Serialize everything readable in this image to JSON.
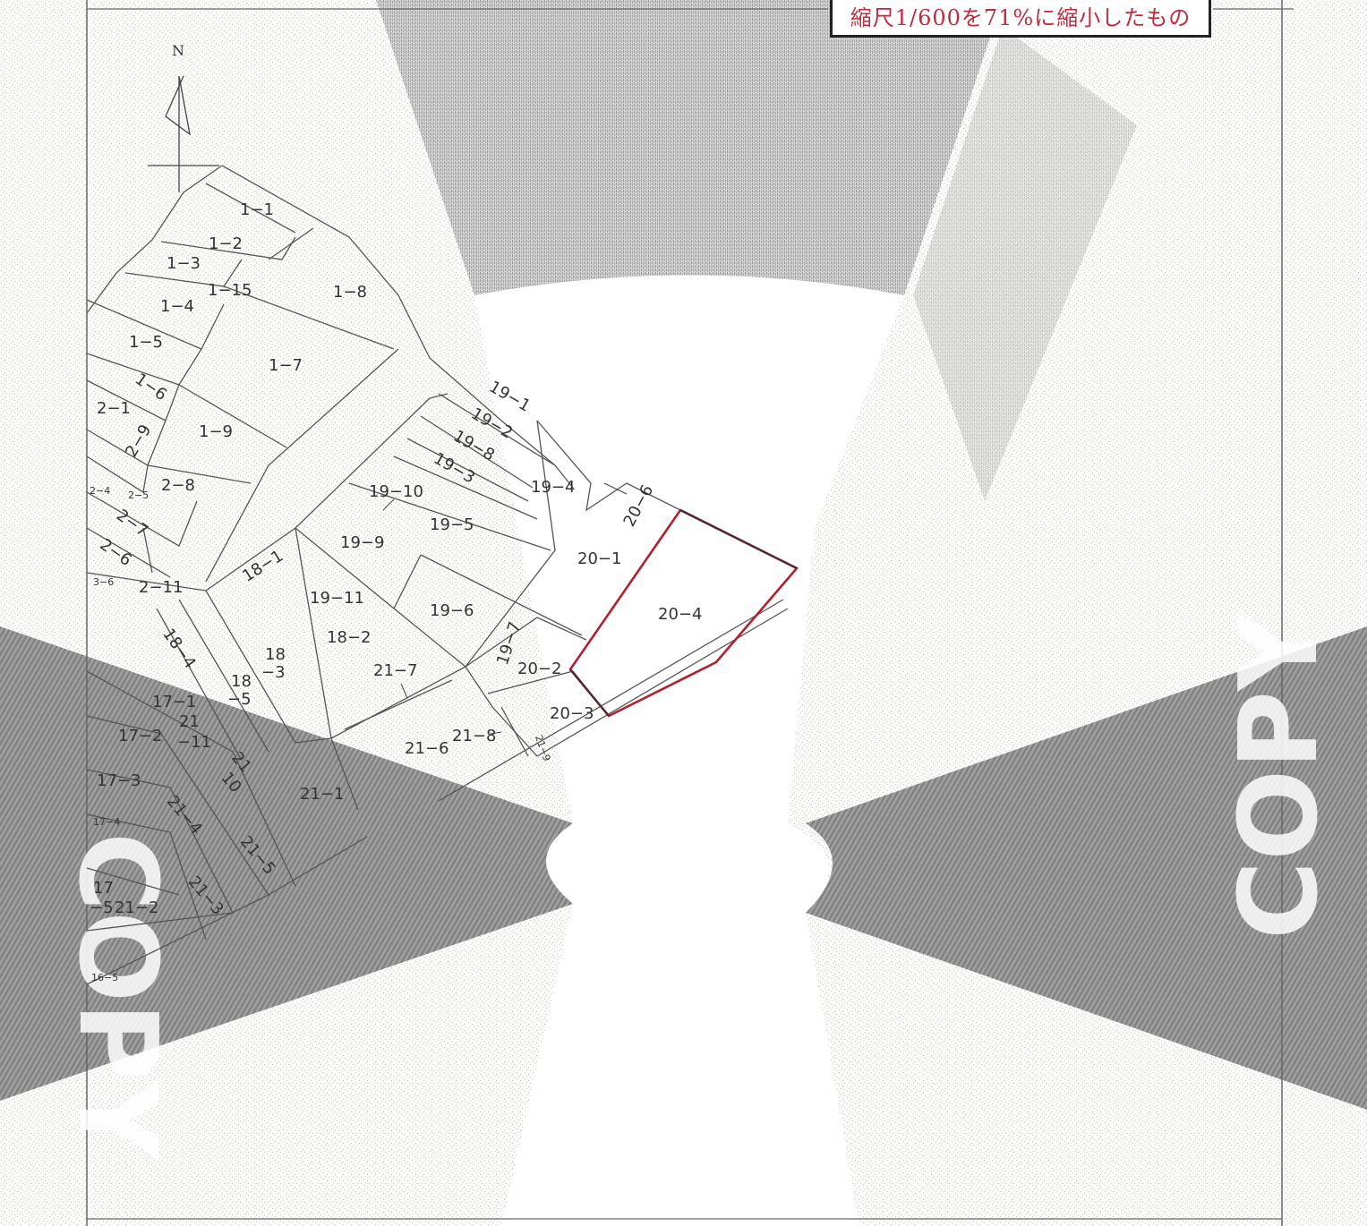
{
  "scale_note": "縮尺1/600を71%に縮小したもの",
  "north_label": "N",
  "watermark_text": "COPY",
  "colors": {
    "highlight": "#b3202c",
    "note_text": "#c8283c",
    "copy_band": "#8a8a8a",
    "noise": "#b5b5b5"
  },
  "lots": {
    "l1_1": "1−1",
    "l1_2": "1−2",
    "l1_3": "1−3",
    "l1_15": "1−15",
    "l1_4": "1−4",
    "l1_5": "1−5",
    "l1_6": "1−6",
    "l1_7": "1−7",
    "l1_8": "1−8",
    "l1_9": "1−9",
    "l2_1": "2−1",
    "l2_9": "2−9",
    "l2_8": "2−8",
    "l2_4": "2−4",
    "l2_5": "2−5",
    "l2_7": "2−7",
    "l2_6": "2−6",
    "l3_6": "3−6",
    "l2_11": "2−11",
    "l19_1": "19−1",
    "l19_2": "19−2",
    "l19_8": "19−8",
    "l19_3": "19−3",
    "l19_4": "19−4",
    "l19_10": "19−10",
    "l19_5": "19−5",
    "l19_9": "19−9",
    "l19_11": "19−11",
    "l19_6": "19−6",
    "l19_7": "19−7",
    "l18_1": "18−1",
    "l18_2": "18−2",
    "l18_3a": "18",
    "l18_3b": "−3",
    "l18_4": "18−4",
    "l18_5a": "18",
    "l18_5b": "−5",
    "l20_6": "20−6",
    "l20_1": "20−1",
    "l20_4": "20−4",
    "l20_2": "20−2",
    "l20_3": "20−3",
    "l21_7": "21−7",
    "l21_6": "21−6",
    "l21_8": "21−8",
    "l21_9": "21−9",
    "l21_11a": "21",
    "l21_11b": "−11",
    "l21_10a": "21",
    "l21_10b": "10",
    "l21_1": "21−1",
    "l21_4": "21−4",
    "l21_5": "21−5",
    "l21_3": "21−3",
    "l21_2": "21−2",
    "l17_1": "17−1",
    "l17_2": "17−2",
    "l17_3": "17−3",
    "l17_4": "17−4",
    "l17_5a": "17",
    "l17_5b": "−5",
    "l16_5": "16−5"
  }
}
